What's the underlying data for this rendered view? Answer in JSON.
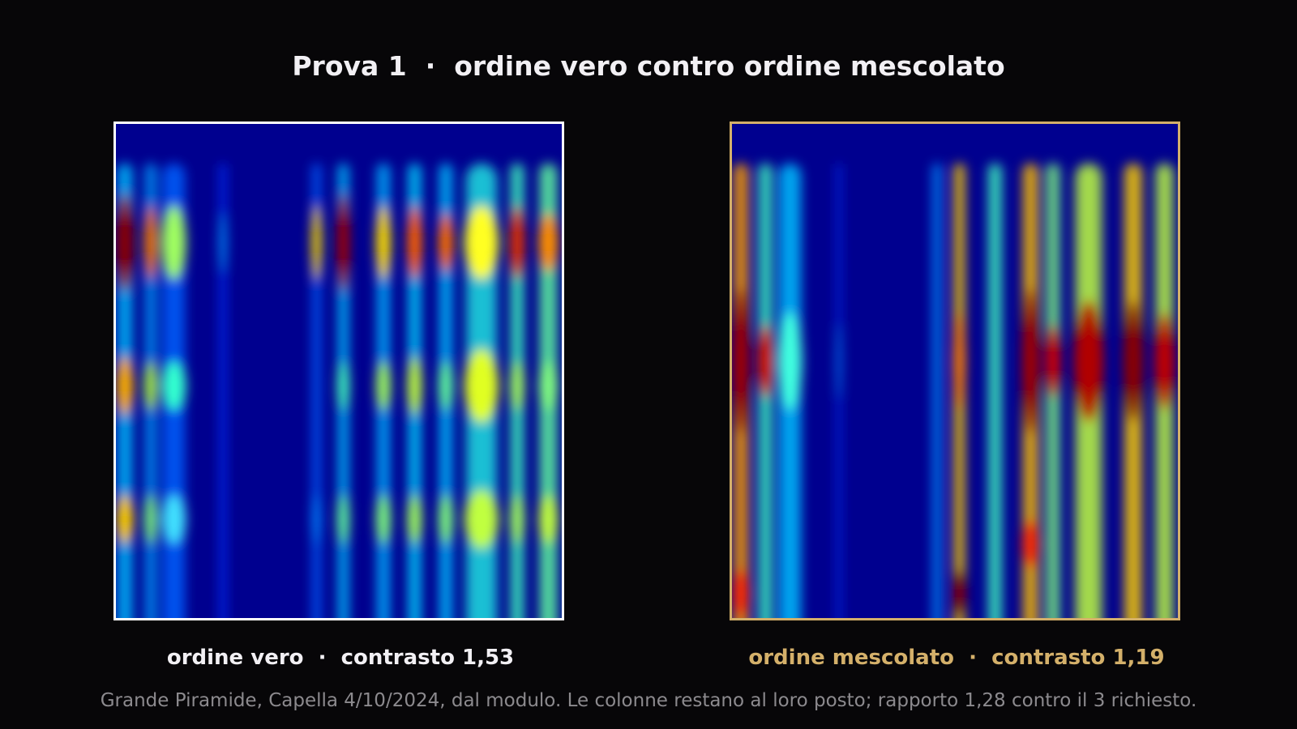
{
  "title": "Prova 1  ·  ordine vero contro ordine mescolato",
  "panels": [
    {
      "caption": "ordine vero  ·  contrasto 1,53"
    },
    {
      "caption": "ordine mescolato  ·  contrasto 1,19"
    }
  ],
  "footer": "Grande Piramide, Capella 4/10/2024, dal modulo. Le colonne restano al loro posto; rapporto 1,28 contro il 3 richiesto."
}
